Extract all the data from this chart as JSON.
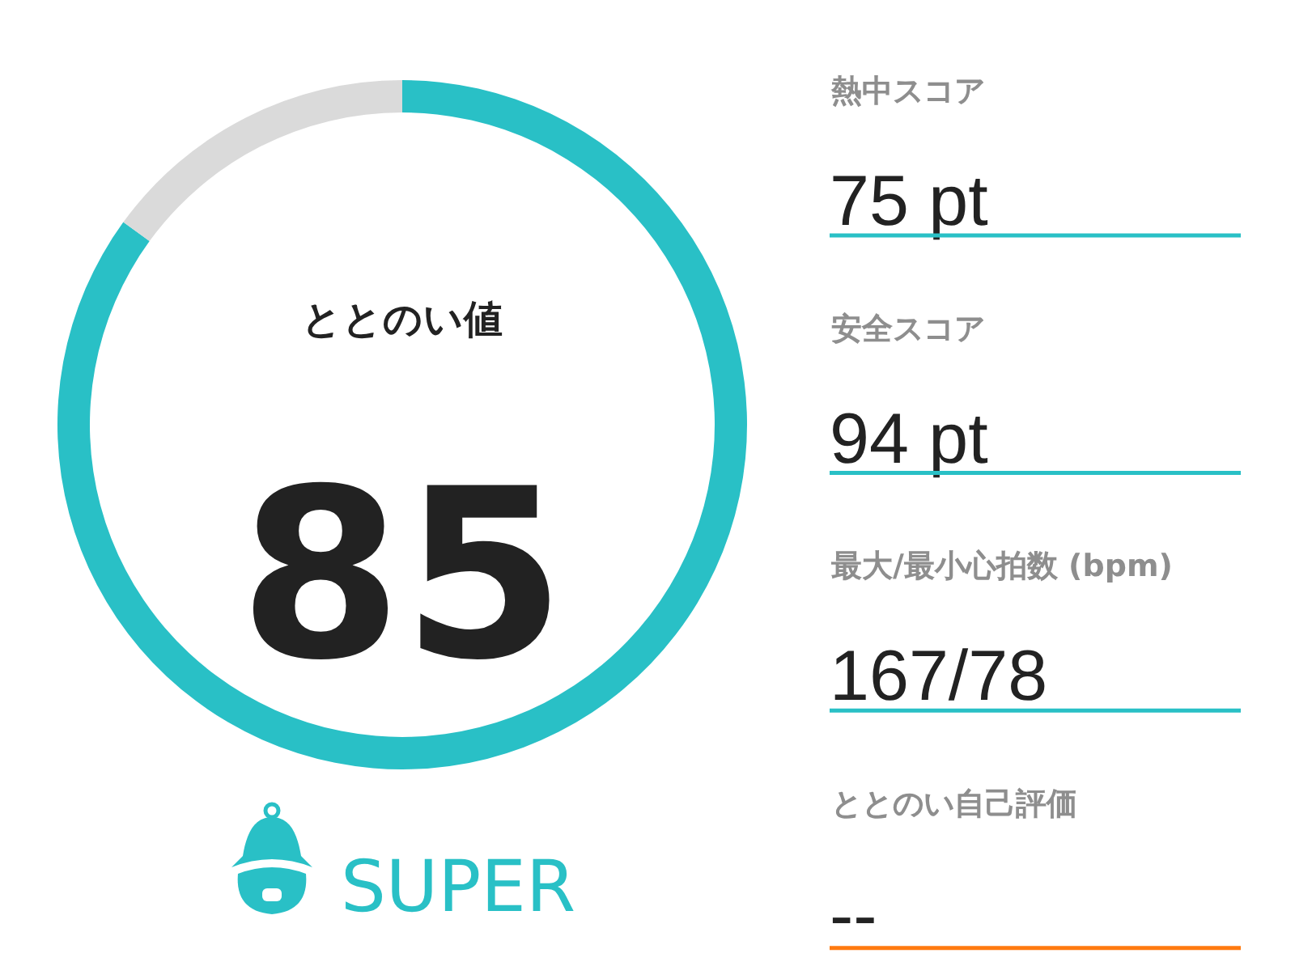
{
  "chart_data": [
    {
      "type": "donut",
      "title": "ととのい値",
      "categories": [
        null,
        null
      ],
      "values": [
        85,
        15
      ],
      "colors": [
        "#29c0c6",
        "#dadada"
      ],
      "value_labels": [
        "85",
        null
      ],
      "annotations": [
        "SUPER"
      ]
    },
    {
      "type": "other",
      "annotations": [
        "熱中スコア",
        "75 pt",
        "安全スコア",
        "94 pt",
        "最大/最小心拍数 (bpm)",
        "167/78",
        "ととのい自己評価",
        "--"
      ],
      "colors": [
        "#29c0c6",
        "#29c0c6",
        "#29c0c6",
        "#ff7a10"
      ]
    }
  ]
}
